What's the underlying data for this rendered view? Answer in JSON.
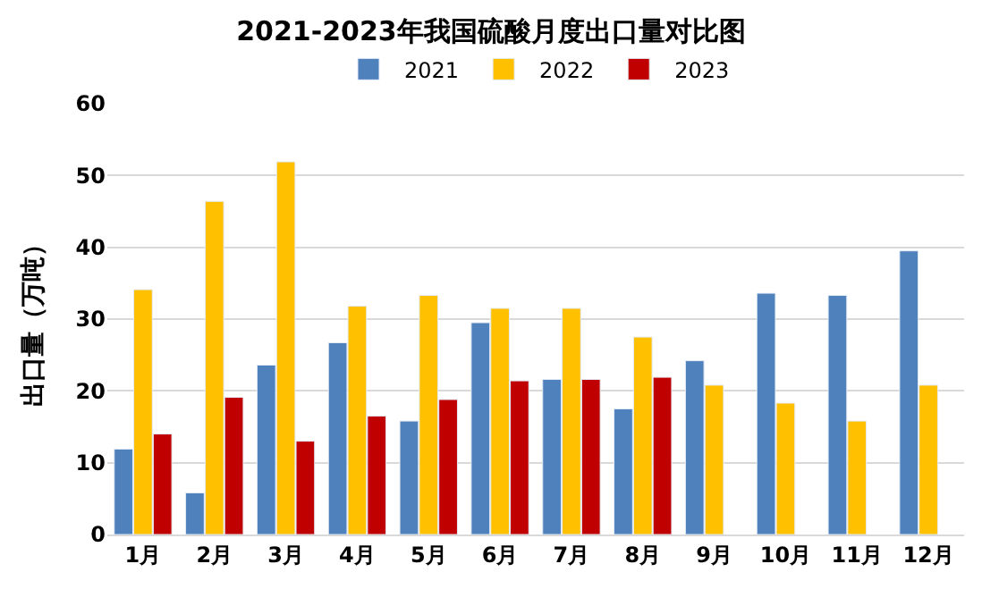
{
  "chart_data": {
    "type": "bar",
    "title": "2021-2023年我国硫酸月度出口量对比图",
    "ylabel": "出口量（万吨）",
    "categories": [
      "1月",
      "2月",
      "3月",
      "4月",
      "5月",
      "6月",
      "7月",
      "8月",
      "9月",
      "10月",
      "11月",
      "12月"
    ],
    "series": [
      {
        "name": "2021",
        "color": "#4f81bd",
        "values": [
          11.9,
          5.8,
          23.6,
          26.7,
          15.8,
          29.5,
          21.6,
          17.5,
          24.2,
          33.6,
          33.3,
          39.5
        ]
      },
      {
        "name": "2022",
        "color": "#ffc000",
        "values": [
          34.1,
          46.4,
          51.9,
          31.8,
          33.3,
          31.5,
          31.5,
          27.5,
          20.8,
          18.3,
          15.8,
          20.8
        ]
      },
      {
        "name": "2023",
        "color": "#c00000",
        "values": [
          14.0,
          19.1,
          13.0,
          16.5,
          18.8,
          21.4,
          21.6,
          21.9,
          null,
          null,
          null,
          null
        ]
      }
    ],
    "ylim": [
      0,
      60
    ],
    "yticks": [
      0,
      10,
      20,
      30,
      40,
      50,
      60
    ],
    "grid": "y",
    "legend": "top"
  }
}
